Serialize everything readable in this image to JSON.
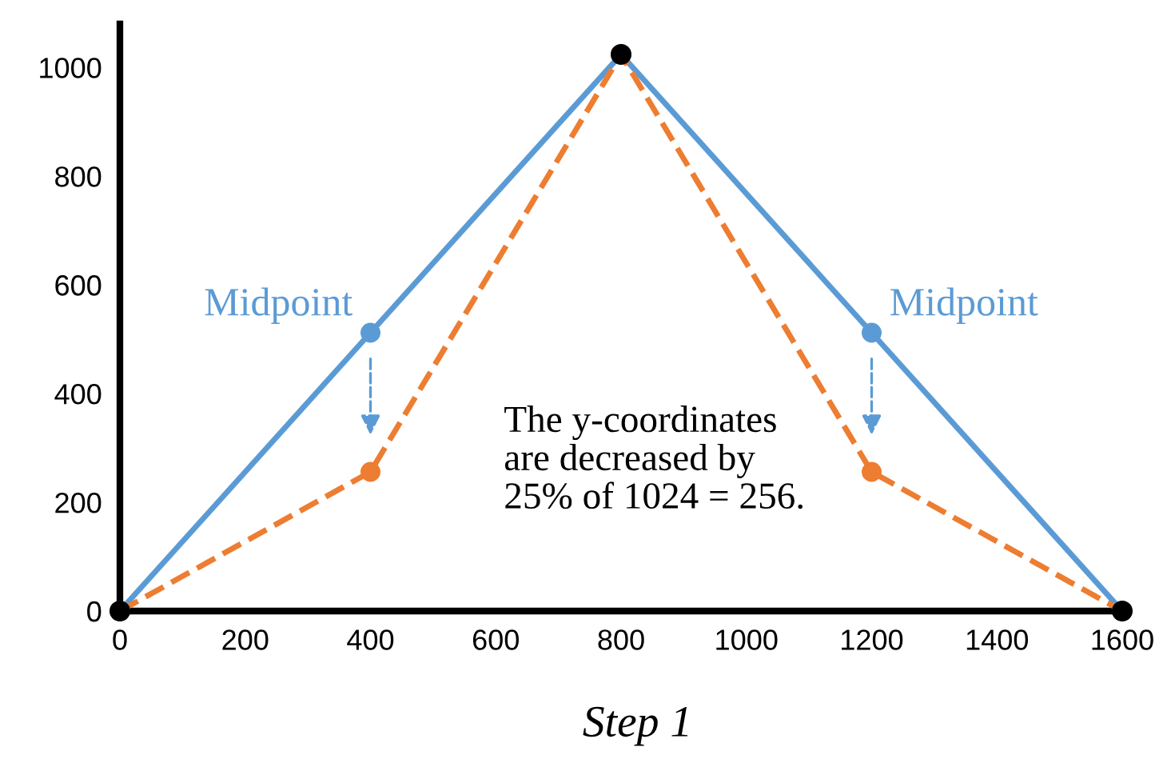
{
  "chart_data": {
    "type": "line",
    "title": "Step 1",
    "x": [
      0,
      400,
      800,
      1200,
      1600
    ],
    "series": [
      {
        "color": "#5b9bd5",
        "values": [
          0,
          512,
          1024,
          512,
          0
        ],
        "line_style": "solid",
        "marker": "circle"
      },
      {
        "color": "#ed7d31",
        "values": [
          0,
          256,
          1024,
          256,
          0
        ],
        "line_style": "dashed",
        "marker": "circle"
      },
      {
        "type": "scatter",
        "color": "#000000",
        "x": [
          0,
          800,
          1600
        ],
        "values": [
          0,
          1024,
          0
        ],
        "marker": "circle"
      }
    ],
    "annotations": [
      {
        "text": "Midpoint",
        "x": 400,
        "y": 512
      },
      {
        "text": "Midpoint",
        "x": 1200,
        "y": 512
      },
      "The y-coordinates\nare decreased by\n25% of 1024 = 256."
    ],
    "xlim": [
      0,
      1600
    ],
    "ylim": [
      0,
      1080
    ],
    "xticks": [
      0,
      200,
      400,
      600,
      800,
      1000,
      1200,
      1400,
      1600
    ],
    "yticks": [
      0,
      200,
      400,
      600,
      800,
      1000
    ],
    "grid": false,
    "legend": false
  }
}
